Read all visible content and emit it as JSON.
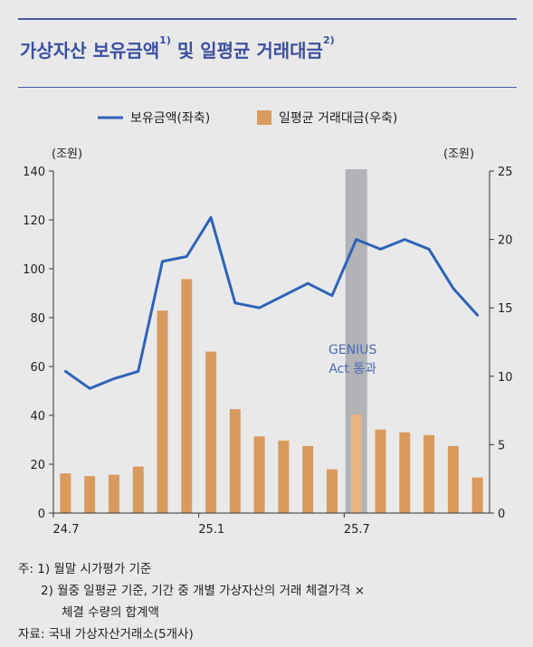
{
  "title": {
    "main": "가상자산 보유금액",
    "sup1": "1)",
    "mid": " 및 일평균 거래대금",
    "sup2": "2)"
  },
  "chart_data": {
    "type": "bar+line",
    "legend": [
      {
        "name": "보유금액(좌축)",
        "kind": "line",
        "color": "#2e63b8"
      },
      {
        "name": "일평균 거래대금(우축)",
        "kind": "bar",
        "color": "#d99a5e"
      }
    ],
    "left_axis": {
      "unit": "(조원)",
      "min": 0,
      "max": 140,
      "ticks": [
        0,
        20,
        40,
        60,
        80,
        100,
        120,
        140
      ]
    },
    "right_axis": {
      "unit": "(조원)",
      "min": 0,
      "max": 25,
      "ticks": [
        0,
        5,
        10,
        15,
        20,
        25
      ]
    },
    "x_tick_labels": [
      {
        "label": "24.7",
        "index": 0
      },
      {
        "label": "25.1",
        "index": 6
      },
      {
        "label": "25.7",
        "index": 12
      }
    ],
    "n_points": 18,
    "line_values": [
      58,
      51,
      55,
      58,
      103,
      105,
      121,
      86,
      84,
      89,
      94,
      89,
      112,
      108,
      112,
      108,
      92,
      81
    ],
    "bar_values": [
      2.9,
      2.7,
      2.8,
      3.4,
      14.8,
      17.1,
      11.8,
      7.6,
      5.6,
      5.3,
      4.9,
      3.2,
      7.2,
      6.1,
      5.9,
      5.7,
      4.9,
      2.6
    ],
    "highlight": {
      "index": 12,
      "label_line1": "GENIUS",
      "label_line2": "Act 통과",
      "color": "#9ea0a6"
    },
    "grid": false
  },
  "notes": {
    "line1": "주: 1) 월말 시가평가 기준",
    "line2": "2) 월중 일평균 기준, 기간 중 개별 가상자산의 거래 체결가격 ×",
    "line3": "체결 수량의 합계액",
    "source": "자료: 국내 가상자산거래소(5개사)"
  }
}
